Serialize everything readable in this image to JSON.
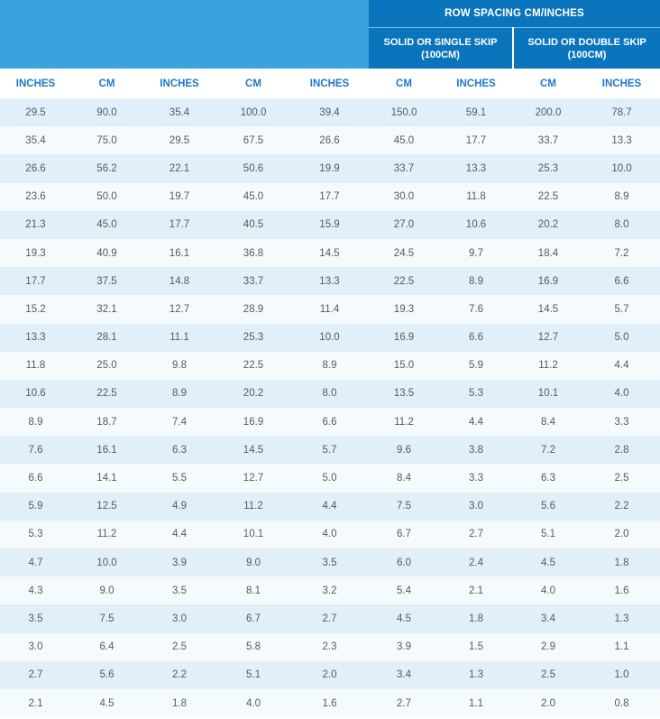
{
  "header": {
    "group_title": "ROW SPACING CM/INCHES",
    "sub_left_line1": "SOLID OR SINGLE SKIP",
    "sub_left_line2": "(100CM)",
    "sub_right_line1": "SOLID OR DOUBLE SKIP",
    "sub_right_line2": "(100CM)"
  },
  "columns": [
    "INCHES",
    "CM",
    "INCHES",
    "CM",
    "INCHES",
    "CM",
    "INCHES",
    "CM",
    "INCHES"
  ],
  "rows": [
    [
      "29.5",
      "90.0",
      "35.4",
      "100.0",
      "39.4",
      "150.0",
      "59.1",
      "200.0",
      "78.7"
    ],
    [
      "35.4",
      "75.0",
      "29.5",
      "67.5",
      "26.6",
      "45.0",
      "17.7",
      "33.7",
      "13.3"
    ],
    [
      "26.6",
      "56.2",
      "22.1",
      "50.6",
      "19.9",
      "33.7",
      "13.3",
      "25.3",
      "10.0"
    ],
    [
      "23.6",
      "50.0",
      "19.7",
      "45.0",
      "17.7",
      "30.0",
      "11.8",
      "22.5",
      "8.9"
    ],
    [
      "21.3",
      "45.0",
      "17.7",
      "40.5",
      "15.9",
      "27.0",
      "10.6",
      "20.2",
      "8.0"
    ],
    [
      "19.3",
      "40.9",
      "16.1",
      "36.8",
      "14.5",
      "24.5",
      "9.7",
      "18.4",
      "7.2"
    ],
    [
      "17.7",
      "37.5",
      "14.8",
      "33.7",
      "13.3",
      "22.5",
      "8.9",
      "16.9",
      "6.6"
    ],
    [
      "15.2",
      "32.1",
      "12.7",
      "28.9",
      "11.4",
      "19.3",
      "7.6",
      "14.5",
      "5.7"
    ],
    [
      "13.3",
      "28.1",
      "11.1",
      "25.3",
      "10.0",
      "16.9",
      "6.6",
      "12.7",
      "5.0"
    ],
    [
      "11.8",
      "25.0",
      "9.8",
      "22.5",
      "8.9",
      "15.0",
      "5.9",
      "11.2",
      "4.4"
    ],
    [
      "10.6",
      "22.5",
      "8.9",
      "20.2",
      "8.0",
      "13.5",
      "5.3",
      "10.1",
      "4.0"
    ],
    [
      "8.9",
      "18.7",
      "7.4",
      "16.9",
      "6.6",
      "11.2",
      "4.4",
      "8.4",
      "3.3"
    ],
    [
      "7.6",
      "16.1",
      "6.3",
      "14.5",
      "5.7",
      "9.6",
      "3.8",
      "7.2",
      "2.8"
    ],
    [
      "6.6",
      "14.1",
      "5.5",
      "12.7",
      "5.0",
      "8.4",
      "3.3",
      "6.3",
      "2.5"
    ],
    [
      "5.9",
      "12.5",
      "4.9",
      "11.2",
      "4.4",
      "7.5",
      "3.0",
      "5.6",
      "2.2"
    ],
    [
      "5.3",
      "11.2",
      "4.4",
      "10.1",
      "4.0",
      "6.7",
      "2.7",
      "5.1",
      "2.0"
    ],
    [
      "4.7",
      "10.0",
      "3.9",
      "9.0",
      "3.5",
      "6.0",
      "2.4",
      "4.5",
      "1.8"
    ],
    [
      "4.3",
      "9.0",
      "3.5",
      "8.1",
      "3.2",
      "5.4",
      "2.1",
      "4.0",
      "1.6"
    ],
    [
      "3.5",
      "7.5",
      "3.0",
      "6.7",
      "2.7",
      "4.5",
      "1.8",
      "3.4",
      "1.3"
    ],
    [
      "3.0",
      "6.4",
      "2.5",
      "5.8",
      "2.3",
      "3.9",
      "1.5",
      "2.9",
      "1.1"
    ],
    [
      "2.7",
      "5.6",
      "2.2",
      "5.1",
      "2.0",
      "3.4",
      "1.3",
      "2.5",
      "1.0"
    ],
    [
      "2.1",
      "4.5",
      "1.8",
      "4.0",
      "1.6",
      "2.7",
      "1.1",
      "2.0",
      "0.8"
    ]
  ]
}
